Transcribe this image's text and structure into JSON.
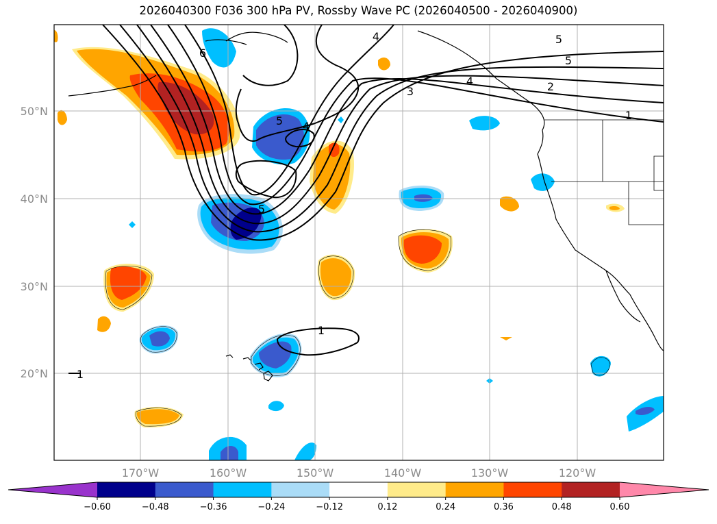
{
  "title": "2026040300 F036 300 hPa PV, Rossby Wave PC (2026040500 - 2026040900)",
  "axes": {
    "lat_labels": [
      "50°N",
      "40°N",
      "30°N",
      "20°N"
    ],
    "lon_labels": [
      "170°W",
      "160°W",
      "150°W",
      "140°W",
      "130°W",
      "120°W"
    ]
  },
  "colorbar": {
    "tick_labels": [
      "−0.60",
      "−0.48",
      "−0.36",
      "−0.24",
      "−0.12",
      "0.12",
      "0.24",
      "0.36",
      "0.48",
      "0.60"
    ],
    "colors": [
      "#9933cc",
      "#00008b",
      "#3a5acd",
      "#00bfff",
      "#aadcf7",
      "#ffffff",
      "#ffeb8a",
      "#ffa500",
      "#ff4500",
      "#b22222",
      "#ff88aa"
    ]
  },
  "contour_labels": [
    "6",
    "4",
    "5",
    "5",
    "4",
    "3",
    "2",
    "1",
    "5",
    "4",
    "5",
    "1",
    "1"
  ],
  "colors": {
    "contour": "#000000",
    "grid": "#b0b0b0",
    "coast": "#000000"
  }
}
